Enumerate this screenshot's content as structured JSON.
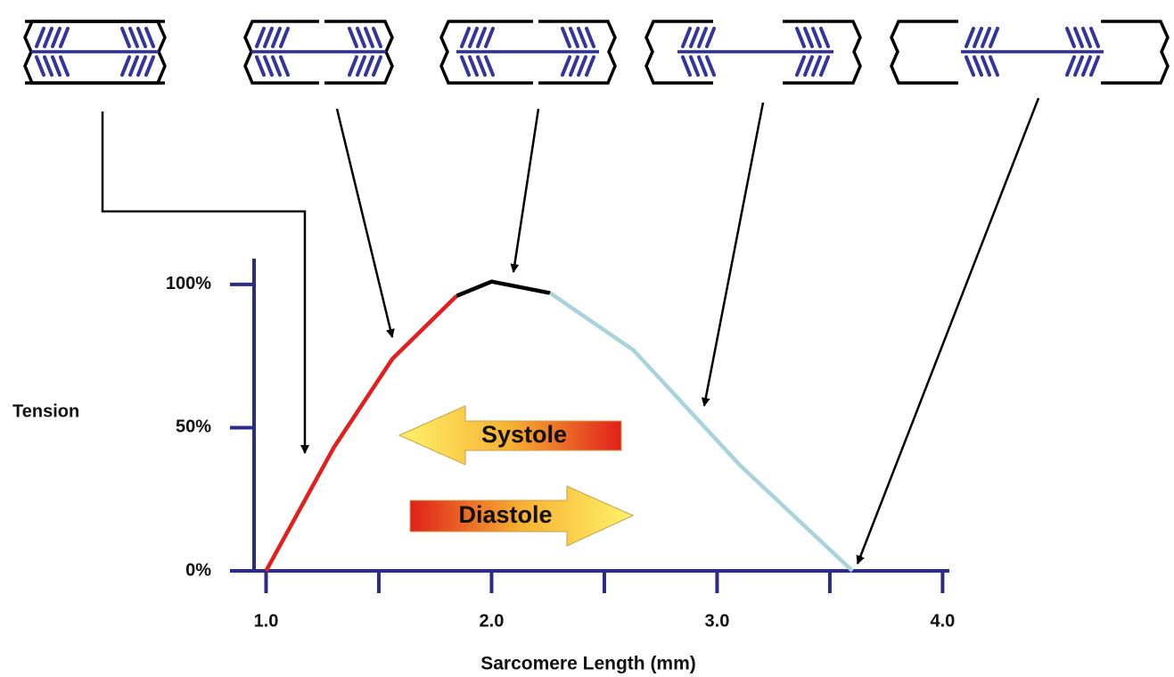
{
  "chart_data": {
    "type": "line",
    "x_label": "Sarcomere Length (mm)",
    "y_label": "Tension",
    "x": [
      1.0,
      1.3,
      1.56,
      1.845,
      2.0,
      2.26,
      2.63,
      3.1,
      3.6
    ],
    "series": [
      {
        "color": "#e41e1e",
        "values": [
          0,
          43,
          74,
          96,
          null,
          null,
          null,
          null,
          null
        ]
      },
      {
        "color": "#000000",
        "values": [
          null,
          null,
          null,
          96,
          101,
          97,
          null,
          null,
          null
        ]
      },
      {
        "color": "#a9d3da",
        "values": [
          null,
          null,
          null,
          null,
          null,
          97,
          77,
          37,
          0
        ]
      }
    ],
    "xlim": [
      0.84,
      4.03
    ],
    "ylim": [
      0,
      109
    ],
    "xticks": [
      {
        "value": 1,
        "label": "1.0"
      },
      {
        "value": 2,
        "label": "2.0"
      },
      {
        "value": 3,
        "label": "3.0"
      },
      {
        "value": 4,
        "label": "4.0"
      }
    ],
    "xminor_ticks": [
      1.5,
      2.5,
      3.5
    ],
    "yticks": [
      {
        "value": 0,
        "label": "0%"
      },
      {
        "value": 50,
        "label": "50%"
      },
      {
        "value": 100,
        "label": "100%"
      }
    ],
    "axis_color": "#2b2b88",
    "annotations": [
      "Systole",
      "Diastole"
    ]
  }
}
